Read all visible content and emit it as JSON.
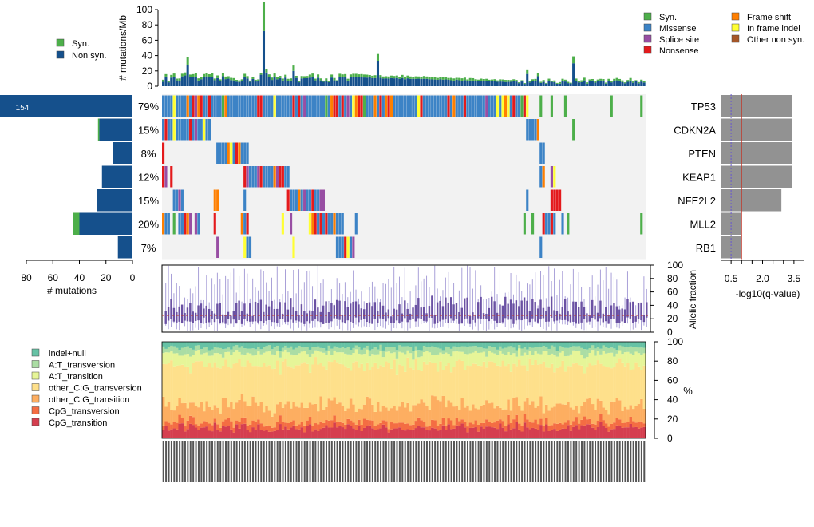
{
  "chart_data": [
    {
      "panel": "tmb",
      "type": "bar",
      "ylabel": "# mutations/Mb",
      "ylim": [
        0,
        110
      ],
      "yticks": [
        0,
        20,
        40,
        60,
        80,
        100
      ],
      "n_samples": 178,
      "series": [
        {
          "name": "Syn.",
          "color": "#4daf4a"
        },
        {
          "name": "Non syn.",
          "color": "#15508c"
        }
      ],
      "legend_left": [
        {
          "label": "Syn.",
          "color": "#4daf4a"
        },
        {
          "label": "Non syn.",
          "color": "#15508c"
        }
      ],
      "legend_right": [
        {
          "label": "Syn.",
          "color": "#4daf4a"
        },
        {
          "label": "Missense",
          "color": "#3c83c6"
        },
        {
          "label": "Splice site",
          "color": "#984ea3"
        },
        {
          "label": "Nonsense",
          "color": "#e41a1c"
        },
        {
          "label": "Frame shift",
          "color": "#ff7f00"
        },
        {
          "label": "In frame indel",
          "color": "#ffff33"
        },
        {
          "label": "Other non syn.",
          "color": "#a65628"
        }
      ],
      "peaks": [
        {
          "sample": 9,
          "nonsyn": 28,
          "syn": 10
        },
        {
          "sample": 37,
          "nonsyn": 72,
          "syn": 38
        },
        {
          "sample": 48,
          "nonsyn": 20,
          "syn": 7
        },
        {
          "sample": 79,
          "nonsyn": 33,
          "syn": 9
        },
        {
          "sample": 134,
          "nonsyn": 16,
          "syn": 5
        },
        {
          "sample": 138,
          "nonsyn": 13,
          "syn": 4
        },
        {
          "sample": 151,
          "nonsyn": 30,
          "syn": 9
        }
      ]
    },
    {
      "panel": "oncoplot",
      "type": "heatmap",
      "genes": [
        {
          "gene": "TP53",
          "percent": "79%",
          "nonsyn": 154,
          "syn": 0,
          "neglog10q": 3.4
        },
        {
          "gene": "CDKN2A",
          "percent": "15%",
          "nonsyn": 25,
          "syn": 1,
          "neglog10q": 3.4
        },
        {
          "gene": "PTEN",
          "percent": "8%",
          "nonsyn": 15,
          "syn": 0,
          "neglog10q": 3.4
        },
        {
          "gene": "KEAP1",
          "percent": "12%",
          "nonsyn": 23,
          "syn": 0,
          "neglog10q": 3.4
        },
        {
          "gene": "NFE2L2",
          "percent": "15%",
          "nonsyn": 27,
          "syn": 0,
          "neglog10q": 2.9
        },
        {
          "gene": "MLL2",
          "percent": "20%",
          "nonsyn": 40,
          "syn": 5,
          "neglog10q": 1.0
        },
        {
          "gene": "RB1",
          "percent": "7%",
          "nonsyn": 11,
          "syn": 0,
          "neglog10q": 1.0
        }
      ],
      "bar_label_top": "154",
      "xlabel_left": "# mutations",
      "xticks_left": [
        80,
        60,
        40,
        20,
        0
      ],
      "xlim_left": [
        0,
        80
      ],
      "xlabel_right": "-log10(q-value)",
      "xticks_right": [
        "0.5",
        "2.0",
        "3.5"
      ],
      "xlim_right": [
        0,
        4
      ],
      "significance_line": 1.0,
      "reference_dashed": 0.5
    },
    {
      "panel": "allelic_fraction",
      "type": "scatter",
      "ylabel": "Allelic fraction",
      "ylim": [
        0,
        100
      ],
      "yticks": [
        0,
        20,
        40,
        60,
        80,
        100
      ],
      "median_line": 25
    },
    {
      "panel": "mutation_spectrum",
      "type": "bar",
      "stacked": true,
      "ylabel": "%",
      "ylim": [
        0,
        100
      ],
      "yticks": [
        0,
        20,
        40,
        60,
        80,
        100
      ],
      "categories_legend": [
        {
          "label": "indel+null",
          "color": "#66c2a5"
        },
        {
          "label": "A:T_transversion",
          "color": "#abdda4"
        },
        {
          "label": "A:T_transition",
          "color": "#e6f598"
        },
        {
          "label": "other_C:G_transversion",
          "color": "#fee08b"
        },
        {
          "label": "other_C:G_transition",
          "color": "#fdae61"
        },
        {
          "label": "CpG_transversion",
          "color": "#f46d43"
        },
        {
          "label": "CpG_transition",
          "color": "#d53e4f"
        }
      ],
      "mean_percent": [
        6,
        6,
        12,
        41,
        18,
        6,
        11
      ]
    }
  ]
}
